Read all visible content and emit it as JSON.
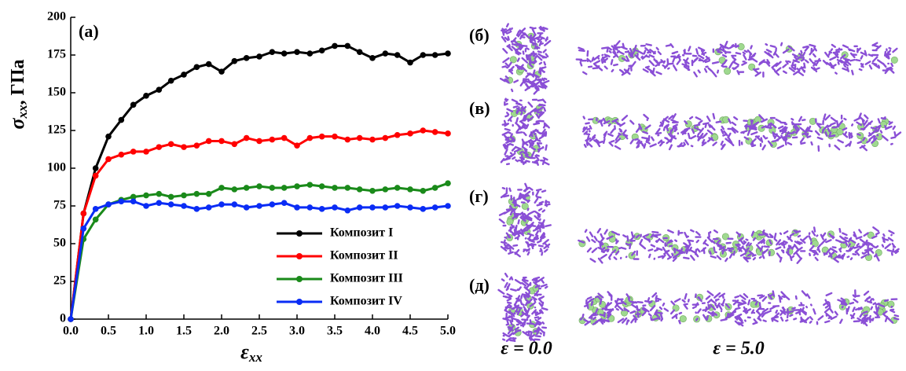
{
  "chart_data": {
    "type": "line",
    "panel_label": "(а)",
    "ylabel": {
      "symbol": "σ",
      "sub": "xx",
      "unit": ", ГПа"
    },
    "xlabel": {
      "symbol": "ε",
      "sub": "xx"
    },
    "x": [
      0,
      0.17,
      0.33,
      0.5,
      0.67,
      0.83,
      1.0,
      1.17,
      1.33,
      1.5,
      1.67,
      1.83,
      2.0,
      2.17,
      2.33,
      2.5,
      2.67,
      2.83,
      3.0,
      3.17,
      3.33,
      3.5,
      3.67,
      3.83,
      4.0,
      4.17,
      4.33,
      4.5,
      4.67,
      4.83,
      5.0
    ],
    "series": [
      {
        "name": "Композит I",
        "color": "#000000",
        "values": [
          0,
          70,
          100,
          121,
          132,
          142,
          148,
          152,
          158,
          162,
          167,
          169,
          164,
          171,
          173,
          174,
          177,
          176,
          177,
          176,
          178,
          181,
          181,
          177,
          173,
          176,
          175,
          170,
          175,
          175,
          176
        ]
      },
      {
        "name": "Композит II",
        "color": "#ff0000",
        "values": [
          0,
          70,
          95,
          106,
          109,
          111,
          111,
          114,
          116,
          114,
          115,
          118,
          118,
          116,
          120,
          118,
          119,
          120,
          115,
          120,
          121,
          121,
          119,
          120,
          119,
          120,
          122,
          123,
          125,
          124,
          123
        ]
      },
      {
        "name": "Композит III",
        "color": "#1a8a1a",
        "values": [
          0,
          53,
          66,
          76,
          79,
          81,
          82,
          83,
          81,
          82,
          83,
          83,
          87,
          86,
          87,
          88,
          87,
          87,
          88,
          89,
          88,
          87,
          87,
          86,
          85,
          86,
          87,
          86,
          85,
          87,
          90
        ]
      },
      {
        "name": "Композит IV",
        "color": "#0a2cf5",
        "values": [
          0,
          60,
          73,
          76,
          78,
          78,
          75,
          77,
          76,
          75,
          73,
          74,
          76,
          76,
          74,
          75,
          76,
          77,
          74,
          74,
          73,
          74,
          72,
          74,
          74,
          74,
          75,
          74,
          73,
          74,
          75
        ]
      }
    ],
    "xlim": [
      0,
      5
    ],
    "ylim": [
      0,
      200
    ],
    "xticks": [
      {
        "value": 0,
        "label": "0.0"
      },
      0.5,
      {
        "value": 1,
        "label": "1.0"
      },
      1.5,
      {
        "value": 2,
        "label": "2.0"
      },
      2.5,
      {
        "value": 3,
        "label": "3.0"
      },
      3.5,
      {
        "value": 4,
        "label": "4.0"
      },
      4.5,
      {
        "value": 5,
        "label": "5.0"
      }
    ],
    "yticks": [
      0,
      25,
      50,
      75,
      100,
      125,
      150,
      175,
      200
    ],
    "legend": "lower right"
  },
  "panels": {
    "labels": [
      "(б)",
      "(в)",
      "(г)",
      "(д)"
    ],
    "strain_labels": [
      "ε = 0.0",
      "ε = 5.0"
    ]
  }
}
